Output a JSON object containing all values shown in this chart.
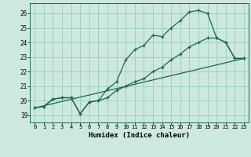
{
  "xlabel": "Humidex (Indice chaleur)",
  "bg_color": "#cce8e0",
  "grid_color": "#99ccbb",
  "line_color": "#1a6655",
  "xlim": [
    -0.5,
    23.5
  ],
  "ylim": [
    18.5,
    26.7
  ],
  "xticks": [
    0,
    1,
    2,
    3,
    4,
    5,
    6,
    7,
    8,
    9,
    10,
    11,
    12,
    13,
    14,
    15,
    16,
    17,
    18,
    19,
    20,
    21,
    22,
    23
  ],
  "yticks": [
    19,
    20,
    21,
    22,
    23,
    24,
    25,
    26
  ],
  "line1_x": [
    0,
    1,
    2,
    3,
    4,
    5,
    6,
    7,
    8,
    9,
    10,
    11,
    12,
    13,
    14,
    15,
    16,
    17,
    18,
    19,
    20,
    21,
    22,
    23
  ],
  "line1_y": [
    19.5,
    19.6,
    20.1,
    20.2,
    20.2,
    19.1,
    19.9,
    20.0,
    20.8,
    21.3,
    22.8,
    23.5,
    23.8,
    24.5,
    24.4,
    25.0,
    25.5,
    26.1,
    26.2,
    26.0,
    24.3,
    24.0,
    22.9,
    22.9
  ],
  "line2_x": [
    0,
    1,
    2,
    3,
    4,
    5,
    6,
    7,
    8,
    9,
    10,
    11,
    12,
    13,
    14,
    15,
    16,
    17,
    18,
    19,
    20,
    21,
    22,
    23
  ],
  "line2_y": [
    19.5,
    19.6,
    20.1,
    20.2,
    20.2,
    19.1,
    19.9,
    20.0,
    20.2,
    20.7,
    21.0,
    21.3,
    21.5,
    22.0,
    22.3,
    22.8,
    23.2,
    23.7,
    24.0,
    24.3,
    24.3,
    24.0,
    22.9,
    22.9
  ],
  "line3_x": [
    0,
    23
  ],
  "line3_y": [
    19.5,
    22.9
  ]
}
